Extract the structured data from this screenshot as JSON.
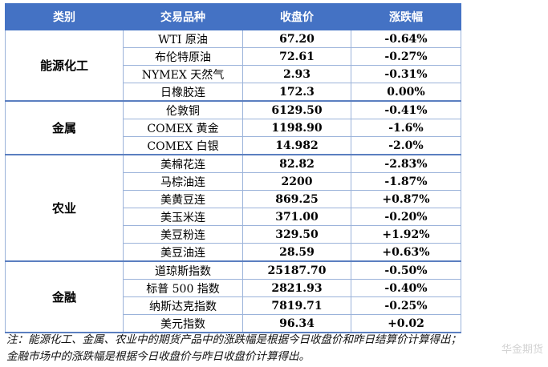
{
  "headers": [
    "类别",
    "交易品种",
    "收盘价",
    "涨跌幅"
  ],
  "colors": {
    "header_bg": "#4472c4",
    "up": "#e60012",
    "down": "#00a651",
    "flat": "#000000"
  },
  "groups": [
    {
      "category": "能源化工",
      "rows": [
        {
          "name": "WTI 原油",
          "price": "67.20",
          "change": "-0.64%",
          "dir": "down"
        },
        {
          "name": "布伦特原油",
          "price": "72.61",
          "change": "-0.27%",
          "dir": "down"
        },
        {
          "name": "NYMEX 天然气",
          "price": "2.93",
          "change": "-0.31%",
          "dir": "down"
        },
        {
          "name": "日橡胶连",
          "price": "172.3",
          "change": "0.00%",
          "dir": "flat"
        }
      ]
    },
    {
      "category": "金属",
      "rows": [
        {
          "name": "伦敦铜",
          "price": "6129.50",
          "change": "-0.41%",
          "dir": "down"
        },
        {
          "name": "COMEX 黄金",
          "price": "1198.90",
          "change": "-1.6%",
          "dir": "down"
        },
        {
          "name": "COMEX 白银",
          "price": "14.982",
          "change": "-2.0%",
          "dir": "down"
        }
      ]
    },
    {
      "category": "农业",
      "rows": [
        {
          "name": "美棉花连",
          "price": "82.82",
          "change": "-2.83%",
          "dir": "down"
        },
        {
          "name": "马棕油连",
          "price": "2200",
          "change": "-1.87%",
          "dir": "down"
        },
        {
          "name": "美黄豆连",
          "price": "869.25",
          "change": "+0.87%",
          "dir": "up"
        },
        {
          "name": "美玉米连",
          "price": "371.00",
          "change": "-0.20%",
          "dir": "down"
        },
        {
          "name": "美豆粉连",
          "price": "329.50",
          "change": "+1.92%",
          "dir": "up"
        },
        {
          "name": "美豆油连",
          "price": "28.59",
          "change": "+0.63%",
          "dir": "up"
        }
      ]
    },
    {
      "category": "金融",
      "rows": [
        {
          "name": "道琼斯指数",
          "price": "25187.70",
          "change": "-0.50%",
          "dir": "down"
        },
        {
          "name": "标普 500 指数",
          "price": "2821.93",
          "change": "-0.40%",
          "dir": "down"
        },
        {
          "name": "纳斯达克指数",
          "price": "7819.71",
          "change": "-0.25%",
          "dir": "down"
        },
        {
          "name": "美元指数",
          "price": "96.34",
          "change": "+0.02",
          "dir": "up"
        }
      ]
    }
  ],
  "note": "注：能源化工、金属、农业中的期货产品中的涨跌幅是根据今日收盘价和昨日结算价计算得出；金融市场中的涨跌幅是根据今日收盘价与昨日收盘价计算得出。",
  "watermark": "华金期货"
}
